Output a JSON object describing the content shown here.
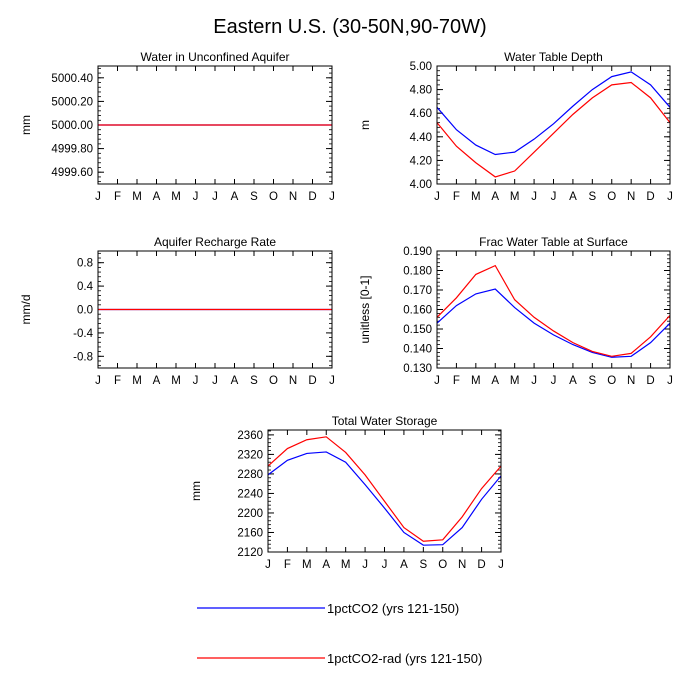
{
  "figure": {
    "title": "Eastern U.S. (30-50N,90-70W)"
  },
  "series_meta": [
    {
      "name": "1pctCO2 (yrs 121-150)",
      "color": "#0000ff"
    },
    {
      "name": "1pctCO2-rad (yrs 121-150)",
      "color": "#ff0000"
    }
  ],
  "chart_data": [
    {
      "type": "line",
      "title": "Water in Unconfined Aquifer",
      "ylabel": "mm",
      "xlabel": "",
      "categories": [
        "J",
        "F",
        "M",
        "A",
        "M",
        "J",
        "J",
        "A",
        "S",
        "O",
        "N",
        "D",
        "J"
      ],
      "ylim": [
        4999.5,
        5000.5
      ],
      "yticks": [
        4999.6,
        4999.8,
        5000.0,
        5000.2,
        5000.4
      ],
      "ytick_labels": [
        "4999.60",
        "4999.80",
        "5000.00",
        "5000.20",
        "5000.40"
      ],
      "grid": false,
      "series": [
        {
          "name": "1pctCO2 (yrs 121-150)",
          "values": [
            5000,
            5000,
            5000,
            5000,
            5000,
            5000,
            5000,
            5000,
            5000,
            5000,
            5000,
            5000,
            5000
          ]
        },
        {
          "name": "1pctCO2-rad (yrs 121-150)",
          "values": [
            5000,
            5000,
            5000,
            5000,
            5000,
            5000,
            5000,
            5000,
            5000,
            5000,
            5000,
            5000,
            5000
          ]
        }
      ]
    },
    {
      "type": "line",
      "title": "Water Table Depth",
      "ylabel": "m",
      "xlabel": "",
      "categories": [
        "J",
        "F",
        "M",
        "A",
        "M",
        "J",
        "J",
        "A",
        "S",
        "O",
        "N",
        "D",
        "J"
      ],
      "ylim": [
        4.0,
        5.0
      ],
      "yticks": [
        4.0,
        4.2,
        4.4,
        4.6,
        4.8,
        5.0
      ],
      "ytick_labels": [
        "4.00",
        "4.20",
        "4.40",
        "4.60",
        "4.80",
        "5.00"
      ],
      "grid": false,
      "series": [
        {
          "name": "1pctCO2 (yrs 121-150)",
          "values": [
            4.65,
            4.46,
            4.33,
            4.25,
            4.27,
            4.38,
            4.51,
            4.66,
            4.8,
            4.91,
            4.95,
            4.84,
            4.65
          ]
        },
        {
          "name": "1pctCO2-rad (yrs 121-150)",
          "values": [
            4.52,
            4.32,
            4.18,
            4.06,
            4.11,
            4.27,
            4.43,
            4.59,
            4.73,
            4.84,
            4.86,
            4.73,
            4.52
          ]
        }
      ]
    },
    {
      "type": "line",
      "title": "Aquifer Recharge Rate",
      "ylabel": "mm/d",
      "xlabel": "",
      "categories": [
        "J",
        "F",
        "M",
        "A",
        "M",
        "J",
        "J",
        "A",
        "S",
        "O",
        "N",
        "D",
        "J"
      ],
      "ylim": [
        -1.0,
        1.0
      ],
      "yticks": [
        -0.8,
        -0.4,
        0.0,
        0.4,
        0.8
      ],
      "ytick_labels": [
        "-0.8",
        "-0.4",
        "0.0",
        "0.4",
        "0.8"
      ],
      "grid": false,
      "series": [
        {
          "name": "1pctCO2 (yrs 121-150)",
          "values": [
            0,
            0,
            0,
            0,
            0,
            0,
            0,
            0,
            0,
            0,
            0,
            0,
            0
          ]
        },
        {
          "name": "1pctCO2-rad (yrs 121-150)",
          "values": [
            0,
            0,
            0,
            0,
            0,
            0,
            0,
            0,
            0,
            0,
            0,
            0,
            0
          ]
        }
      ]
    },
    {
      "type": "line",
      "title": "Frac Water Table at Surface",
      "ylabel": "unitless [0-1]",
      "xlabel": "",
      "categories": [
        "J",
        "F",
        "M",
        "A",
        "M",
        "J",
        "J",
        "A",
        "S",
        "O",
        "N",
        "D",
        "J"
      ],
      "ylim": [
        0.13,
        0.19
      ],
      "yticks": [
        0.13,
        0.14,
        0.15,
        0.16,
        0.17,
        0.18,
        0.19
      ],
      "ytick_labels": [
        "0.130",
        "0.140",
        "0.150",
        "0.160",
        "0.170",
        "0.180",
        "0.190"
      ],
      "grid": false,
      "series": [
        {
          "name": "1pctCO2 (yrs 121-150)",
          "values": [
            0.153,
            0.162,
            0.168,
            0.1705,
            0.161,
            0.153,
            0.147,
            0.142,
            0.138,
            0.1355,
            0.136,
            0.143,
            0.153
          ]
        },
        {
          "name": "1pctCO2-rad (yrs 121-150)",
          "values": [
            0.156,
            0.166,
            0.178,
            0.1825,
            0.165,
            0.156,
            0.149,
            0.143,
            0.1385,
            0.136,
            0.1375,
            0.146,
            0.157
          ]
        }
      ]
    },
    {
      "type": "line",
      "title": "Total Water Storage",
      "ylabel": "mm",
      "xlabel": "",
      "categories": [
        "J",
        "F",
        "M",
        "A",
        "M",
        "J",
        "J",
        "A",
        "S",
        "O",
        "N",
        "D",
        "J"
      ],
      "ylim": [
        2120,
        2370
      ],
      "yticks": [
        2120,
        2160,
        2200,
        2240,
        2280,
        2320,
        2360
      ],
      "ytick_labels": [
        "2120",
        "2160",
        "2200",
        "2240",
        "2280",
        "2320",
        "2360"
      ],
      "grid": false,
      "series": [
        {
          "name": "1pctCO2 (yrs 121-150)",
          "values": [
            2278,
            2308,
            2322,
            2325,
            2304,
            2258,
            2210,
            2160,
            2134,
            2135,
            2170,
            2228,
            2276
          ]
        },
        {
          "name": "1pctCO2-rad (yrs 121-150)",
          "values": [
            2296,
            2332,
            2350,
            2356,
            2324,
            2278,
            2224,
            2170,
            2142,
            2145,
            2192,
            2250,
            2296
          ]
        }
      ]
    }
  ]
}
